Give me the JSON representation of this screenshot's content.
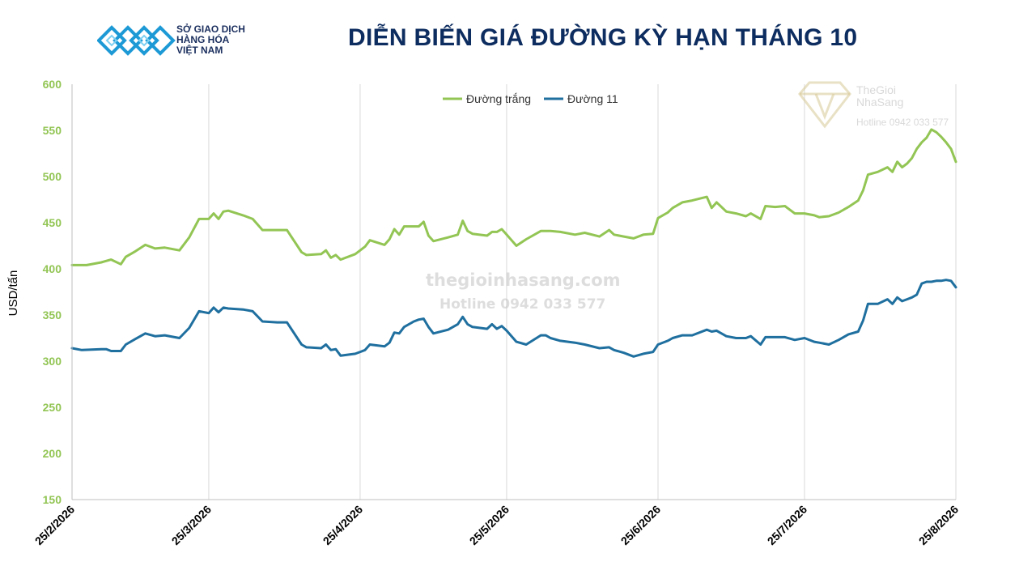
{
  "header": {
    "logo_lines": [
      "SỞ GIAO DỊCH",
      "HÀNG HÓA",
      "VIỆT NAM"
    ],
    "title": "DIỄN BIẾN GIÁ ĐƯỜNG KỲ HẠN THÁNG 10"
  },
  "watermarks": {
    "site": "thegioinhasang.com",
    "hotline": "Hotline 0942 033 577",
    "brand_lines": [
      "TheGioi",
      "NhaSang"
    ],
    "brand_hotline": "Hotline 0942 033 577"
  },
  "colors": {
    "white_sugar": "#92c554",
    "sugar11": "#1f6f9f",
    "axis_text": "#92c554",
    "title": "#0d2c5f",
    "logo_blue": "#1d9ad6"
  },
  "chart_data": {
    "type": "line",
    "title": "DIỄN BIẾN GIÁ ĐƯỜNG KỲ HẠN THÁNG 10",
    "ylabel": "USD/tấn",
    "xlabel": "",
    "ylim": [
      150,
      600
    ],
    "yticks": [
      150,
      200,
      250,
      300,
      350,
      400,
      450,
      500,
      550,
      600
    ],
    "xlim": [
      "2026-02-25",
      "2026-08-25"
    ],
    "xtick_labels": [
      "25/2/2026",
      "25/3/2026",
      "25/4/2026",
      "25/5/2026",
      "25/6/2026",
      "25/7/2026",
      "25/8/2026"
    ],
    "xtick_dates": [
      "2026-02-25",
      "2026-03-25",
      "2026-04-25",
      "2026-05-25",
      "2026-06-25",
      "2026-07-25",
      "2026-08-25"
    ],
    "grid": "vertical",
    "legend_position": "top-center",
    "series": [
      {
        "name": "Đường trắng",
        "color": "#92c554",
        "points": [
          [
            "2026-02-25",
            404
          ],
          [
            "2026-02-28",
            404
          ],
          [
            "2026-03-03",
            407
          ],
          [
            "2026-03-05",
            410
          ],
          [
            "2026-03-07",
            405
          ],
          [
            "2026-03-08",
            413
          ],
          [
            "2026-03-10",
            419
          ],
          [
            "2026-03-12",
            426
          ],
          [
            "2026-03-14",
            422
          ],
          [
            "2026-03-16",
            423
          ],
          [
            "2026-03-19",
            420
          ],
          [
            "2026-03-21",
            434
          ],
          [
            "2026-03-23",
            454
          ],
          [
            "2026-03-25",
            454
          ],
          [
            "2026-03-26",
            460
          ],
          [
            "2026-03-27",
            454
          ],
          [
            "2026-03-28",
            462
          ],
          [
            "2026-03-29",
            463
          ],
          [
            "2026-04-01",
            458
          ],
          [
            "2026-04-03",
            454
          ],
          [
            "2026-04-05",
            442
          ],
          [
            "2026-04-08",
            442
          ],
          [
            "2026-04-10",
            442
          ],
          [
            "2026-04-13",
            418
          ],
          [
            "2026-04-14",
            415
          ],
          [
            "2026-04-17",
            416
          ],
          [
            "2026-04-18",
            420
          ],
          [
            "2026-04-19",
            412
          ],
          [
            "2026-04-20",
            415
          ],
          [
            "2026-04-21",
            410
          ],
          [
            "2026-04-24",
            416
          ],
          [
            "2026-04-25",
            420
          ],
          [
            "2026-04-26",
            424
          ],
          [
            "2026-04-27",
            431
          ],
          [
            "2026-04-30",
            426
          ],
          [
            "2026-05-01",
            432
          ],
          [
            "2026-05-02",
            443
          ],
          [
            "2026-05-03",
            437
          ],
          [
            "2026-05-04",
            446
          ],
          [
            "2026-05-06",
            446
          ],
          [
            "2026-05-07",
            446
          ],
          [
            "2026-05-08",
            451
          ],
          [
            "2026-05-09",
            436
          ],
          [
            "2026-05-10",
            430
          ],
          [
            "2026-05-13",
            434
          ],
          [
            "2026-05-15",
            437
          ],
          [
            "2026-05-16",
            452
          ],
          [
            "2026-05-17",
            441
          ],
          [
            "2026-05-18",
            438
          ],
          [
            "2026-05-21",
            436
          ],
          [
            "2026-05-22",
            440
          ],
          [
            "2026-05-23",
            440
          ],
          [
            "2026-05-24",
            443
          ],
          [
            "2026-05-25",
            437
          ],
          [
            "2026-05-27",
            425
          ],
          [
            "2026-05-29",
            432
          ],
          [
            "2026-06-01",
            441
          ],
          [
            "2026-06-02",
            441
          ],
          [
            "2026-06-03",
            441
          ],
          [
            "2026-06-05",
            440
          ],
          [
            "2026-06-08",
            437
          ],
          [
            "2026-06-10",
            439
          ],
          [
            "2026-06-13",
            435
          ],
          [
            "2026-06-15",
            442
          ],
          [
            "2026-06-16",
            437
          ],
          [
            "2026-06-18",
            435
          ],
          [
            "2026-06-20",
            433
          ],
          [
            "2026-06-22",
            437
          ],
          [
            "2026-06-24",
            438
          ],
          [
            "2026-06-25",
            455
          ],
          [
            "2026-06-27",
            461
          ],
          [
            "2026-06-28",
            466
          ],
          [
            "2026-06-30",
            472
          ],
          [
            "2026-07-02",
            474
          ],
          [
            "2026-07-05",
            478
          ],
          [
            "2026-07-06",
            466
          ],
          [
            "2026-07-07",
            472
          ],
          [
            "2026-07-09",
            462
          ],
          [
            "2026-07-11",
            460
          ],
          [
            "2026-07-13",
            457
          ],
          [
            "2026-07-14",
            460
          ],
          [
            "2026-07-16",
            454
          ],
          [
            "2026-07-17",
            468
          ],
          [
            "2026-07-19",
            467
          ],
          [
            "2026-07-21",
            468
          ],
          [
            "2026-07-23",
            460
          ],
          [
            "2026-07-25",
            460
          ],
          [
            "2026-07-27",
            458
          ],
          [
            "2026-07-28",
            456
          ],
          [
            "2026-07-30",
            457
          ],
          [
            "2026-08-01",
            461
          ],
          [
            "2026-08-03",
            467
          ],
          [
            "2026-08-05",
            474
          ],
          [
            "2026-08-06",
            485
          ],
          [
            "2026-08-07",
            502
          ],
          [
            "2026-08-09",
            505
          ],
          [
            "2026-08-11",
            510
          ],
          [
            "2026-08-12",
            505
          ],
          [
            "2026-08-13",
            516
          ],
          [
            "2026-08-14",
            510
          ],
          [
            "2026-08-15",
            514
          ],
          [
            "2026-08-16",
            520
          ],
          [
            "2026-08-17",
            530
          ],
          [
            "2026-08-18",
            537
          ],
          [
            "2026-08-19",
            542
          ],
          [
            "2026-08-20",
            551
          ],
          [
            "2026-08-21",
            548
          ],
          [
            "2026-08-22",
            543
          ],
          [
            "2026-08-23",
            537
          ],
          [
            "2026-08-24",
            530
          ],
          [
            "2026-08-25",
            516
          ]
        ]
      },
      {
        "name": "Đường 11",
        "color": "#1f6f9f",
        "points": [
          [
            "2026-02-25",
            314
          ],
          [
            "2026-02-27",
            312
          ],
          [
            "2026-03-03",
            313
          ],
          [
            "2026-03-04",
            313
          ],
          [
            "2026-03-05",
            311
          ],
          [
            "2026-03-07",
            311
          ],
          [
            "2026-03-08",
            318
          ],
          [
            "2026-03-10",
            324
          ],
          [
            "2026-03-12",
            330
          ],
          [
            "2026-03-14",
            327
          ],
          [
            "2026-03-16",
            328
          ],
          [
            "2026-03-19",
            325
          ],
          [
            "2026-03-21",
            336
          ],
          [
            "2026-03-23",
            354
          ],
          [
            "2026-03-25",
            352
          ],
          [
            "2026-03-26",
            358
          ],
          [
            "2026-03-27",
            353
          ],
          [
            "2026-03-28",
            358
          ],
          [
            "2026-03-29",
            357
          ],
          [
            "2026-04-01",
            356
          ],
          [
            "2026-04-03",
            354
          ],
          [
            "2026-04-05",
            343
          ],
          [
            "2026-04-08",
            342
          ],
          [
            "2026-04-10",
            342
          ],
          [
            "2026-04-13",
            318
          ],
          [
            "2026-04-14",
            315
          ],
          [
            "2026-04-17",
            314
          ],
          [
            "2026-04-18",
            318
          ],
          [
            "2026-04-19",
            312
          ],
          [
            "2026-04-20",
            313
          ],
          [
            "2026-04-21",
            306
          ],
          [
            "2026-04-24",
            308
          ],
          [
            "2026-04-25",
            310
          ],
          [
            "2026-04-26",
            312
          ],
          [
            "2026-04-27",
            318
          ],
          [
            "2026-04-30",
            316
          ],
          [
            "2026-05-01",
            320
          ],
          [
            "2026-05-02",
            331
          ],
          [
            "2026-05-03",
            330
          ],
          [
            "2026-05-04",
            337
          ],
          [
            "2026-05-06",
            343
          ],
          [
            "2026-05-07",
            345
          ],
          [
            "2026-05-08",
            346
          ],
          [
            "2026-05-09",
            337
          ],
          [
            "2026-05-10",
            330
          ],
          [
            "2026-05-13",
            334
          ],
          [
            "2026-05-15",
            340
          ],
          [
            "2026-05-16",
            348
          ],
          [
            "2026-05-17",
            340
          ],
          [
            "2026-05-18",
            337
          ],
          [
            "2026-05-21",
            335
          ],
          [
            "2026-05-22",
            340
          ],
          [
            "2026-05-23",
            335
          ],
          [
            "2026-05-24",
            338
          ],
          [
            "2026-05-25",
            333
          ],
          [
            "2026-05-27",
            321
          ],
          [
            "2026-05-29",
            318
          ],
          [
            "2026-06-01",
            328
          ],
          [
            "2026-06-02",
            328
          ],
          [
            "2026-06-03",
            325
          ],
          [
            "2026-06-05",
            322
          ],
          [
            "2026-06-08",
            320
          ],
          [
            "2026-06-10",
            318
          ],
          [
            "2026-06-13",
            314
          ],
          [
            "2026-06-15",
            315
          ],
          [
            "2026-06-16",
            312
          ],
          [
            "2026-06-18",
            309
          ],
          [
            "2026-06-20",
            305
          ],
          [
            "2026-06-22",
            308
          ],
          [
            "2026-06-24",
            310
          ],
          [
            "2026-06-25",
            318
          ],
          [
            "2026-06-27",
            322
          ],
          [
            "2026-06-28",
            325
          ],
          [
            "2026-06-30",
            328
          ],
          [
            "2026-07-02",
            328
          ],
          [
            "2026-07-05",
            334
          ],
          [
            "2026-07-06",
            332
          ],
          [
            "2026-07-07",
            333
          ],
          [
            "2026-07-09",
            327
          ],
          [
            "2026-07-11",
            325
          ],
          [
            "2026-07-13",
            325
          ],
          [
            "2026-07-14",
            327
          ],
          [
            "2026-07-16",
            318
          ],
          [
            "2026-07-17",
            326
          ],
          [
            "2026-07-19",
            326
          ],
          [
            "2026-07-21",
            326
          ],
          [
            "2026-07-23",
            323
          ],
          [
            "2026-07-25",
            325
          ],
          [
            "2026-07-27",
            321
          ],
          [
            "2026-07-28",
            320
          ],
          [
            "2026-07-30",
            318
          ],
          [
            "2026-08-01",
            323
          ],
          [
            "2026-08-03",
            329
          ],
          [
            "2026-08-05",
            332
          ],
          [
            "2026-08-06",
            344
          ],
          [
            "2026-08-07",
            362
          ],
          [
            "2026-08-09",
            362
          ],
          [
            "2026-08-11",
            367
          ],
          [
            "2026-08-12",
            362
          ],
          [
            "2026-08-13",
            369
          ],
          [
            "2026-08-14",
            365
          ],
          [
            "2026-08-15",
            367
          ],
          [
            "2026-08-16",
            369
          ],
          [
            "2026-08-17",
            372
          ],
          [
            "2026-08-18",
            384
          ],
          [
            "2026-08-19",
            386
          ],
          [
            "2026-08-20",
            386
          ],
          [
            "2026-08-21",
            387
          ],
          [
            "2026-08-22",
            387
          ],
          [
            "2026-08-23",
            388
          ],
          [
            "2026-08-24",
            387
          ],
          [
            "2026-08-25",
            380
          ]
        ]
      }
    ]
  }
}
